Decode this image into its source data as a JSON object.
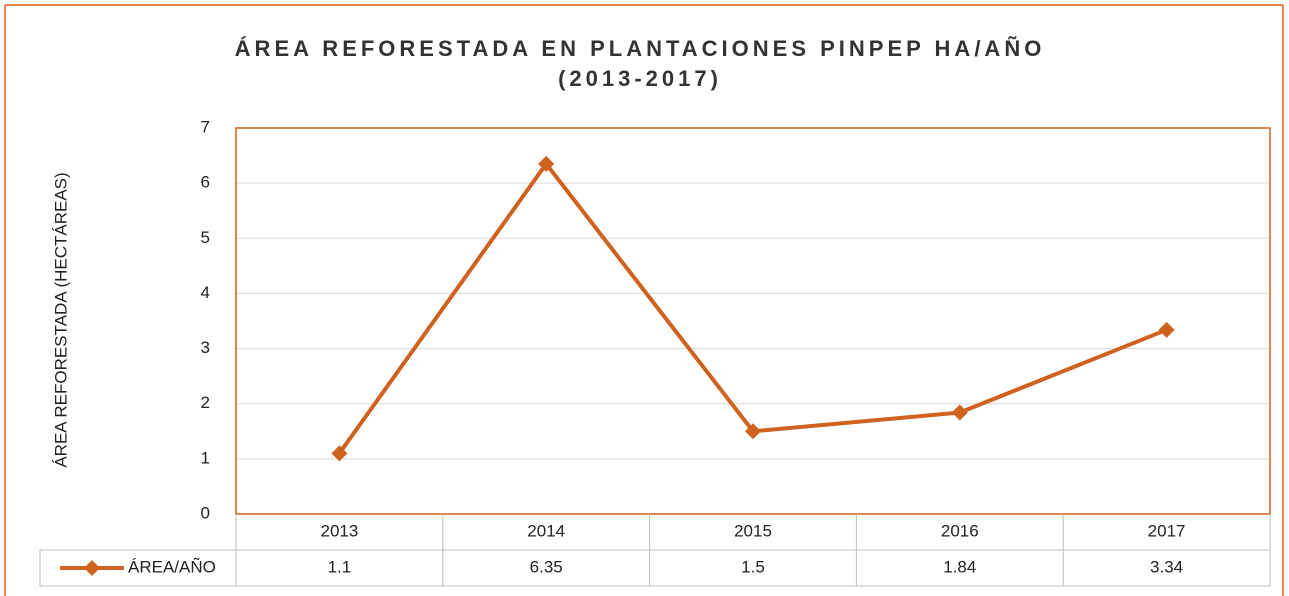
{
  "chart_data": {
    "type": "line",
    "title": "ÁREA REFORESTADA EN PLANTACIONES PINPEP HA/AÑO (2013-2017)",
    "y_label": "ÁREA REFORESTADA (HECTÁREAS)",
    "categories": [
      "2013",
      "2014",
      "2015",
      "2016",
      "2017"
    ],
    "series": [
      {
        "name": "ÁREA/AÑO",
        "color": "#d0621f",
        "values": [
          1.1,
          6.35,
          1.5,
          1.84,
          3.34
        ]
      }
    ],
    "ylim": [
      0,
      7
    ],
    "yticks": [
      0,
      1,
      2,
      3,
      4,
      5,
      6,
      7
    ],
    "grid": true,
    "data_table": true
  }
}
